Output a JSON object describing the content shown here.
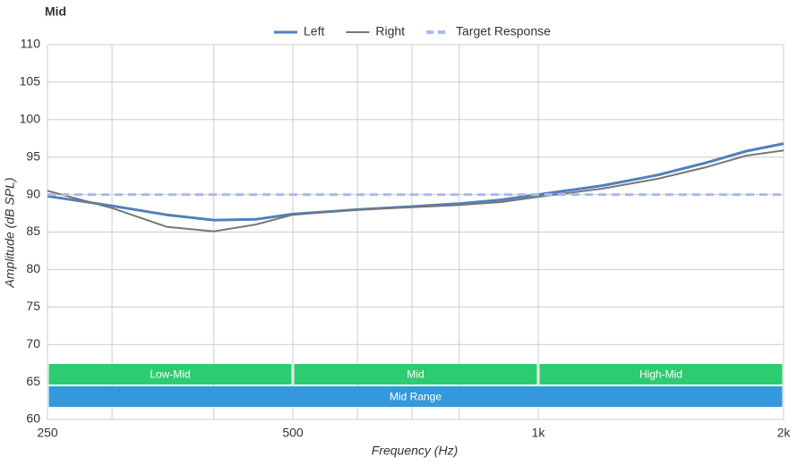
{
  "chart_data": {
    "type": "line",
    "title": "Mid",
    "x_label": "Frequency (Hz)",
    "y_label": "Amplitude (dB SPL)",
    "x": [
      250,
      300,
      350,
      400,
      450,
      500,
      600,
      700,
      800,
      900,
      1000,
      1200,
      1400,
      1600,
      1800,
      2000
    ],
    "series": [
      {
        "name": "Left",
        "color": "#4f81bd",
        "values": [
          89.8,
          88.5,
          87.3,
          86.6,
          86.7,
          87.4,
          88.0,
          88.4,
          88.8,
          89.3,
          90.0,
          91.2,
          92.6,
          94.2,
          95.8,
          96.8
        ]
      },
      {
        "name": "Right",
        "color": "#777777",
        "values": [
          90.5,
          88.2,
          85.7,
          85.1,
          86.0,
          87.3,
          88.0,
          88.3,
          88.6,
          89.0,
          89.7,
          90.8,
          92.1,
          93.6,
          95.2,
          95.9
        ]
      },
      {
        "name": "Target Response",
        "color": "#a9b9f5",
        "dashed": true,
        "values": [
          90,
          90,
          90,
          90,
          90,
          90,
          90,
          90,
          90,
          90,
          90,
          90,
          90,
          90,
          90,
          90
        ]
      }
    ],
    "x_log": true,
    "xlim": [
      250,
      2000
    ],
    "xticks": [
      250,
      500,
      {
        "value": 1000,
        "label": "1k"
      },
      {
        "value": 2000,
        "label": "2k"
      }
    ],
    "xgrid": [
      300,
      400,
      600,
      700,
      800
    ],
    "ylim": [
      60,
      110
    ],
    "yticks": [
      60,
      65,
      70,
      75,
      80,
      85,
      90,
      95,
      100,
      105,
      110
    ],
    "grid": true,
    "ranges": [
      {
        "label": "Low-Mid",
        "start": 250,
        "end": 500,
        "color": "#2ecc71",
        "row": 0
      },
      {
        "label": "Mid",
        "start": 500,
        "end": 1000,
        "color": "#2ecc71",
        "row": 0
      },
      {
        "label": "High-Mid",
        "start": 1000,
        "end": 2000,
        "color": "#2ecc71",
        "row": 0
      },
      {
        "label": "Mid Range",
        "start": 250,
        "end": 2000,
        "color": "#3498db",
        "row": 1
      }
    ]
  }
}
